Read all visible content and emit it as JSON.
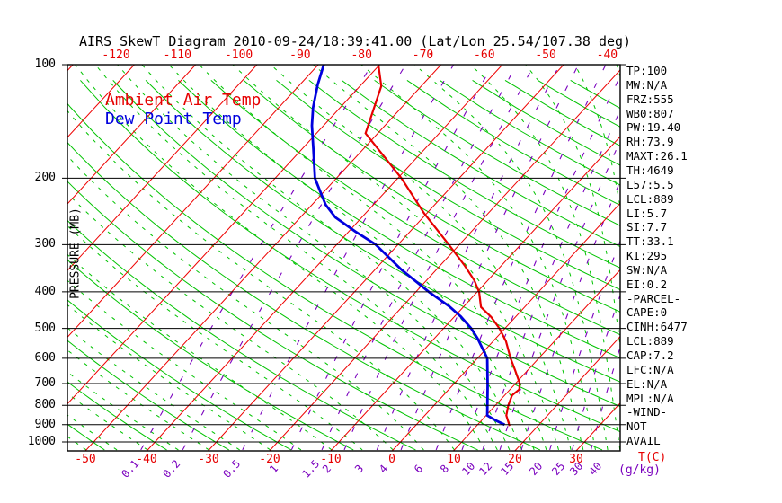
{
  "title": "AIRS SkewT Diagram 2010-09-24/18:39:41.00 (Lat/Lon 25.54/107.38 deg)",
  "legend": {
    "ambient_temp_label": "Ambient Air Temp",
    "dew_point_label": "Dew Point Temp"
  },
  "axes": {
    "pressure_axis_title": "PRESSURE (MB)",
    "pressure_ticks": [
      100,
      200,
      300,
      400,
      500,
      600,
      700,
      800,
      900,
      1000
    ],
    "top_temp_labels": [
      -120,
      -110,
      -100,
      -90,
      -80,
      -70,
      -60,
      -50,
      -40
    ],
    "bottom_temp_labels": [
      -50,
      -40,
      -30,
      -20,
      -10,
      0,
      10,
      20,
      30
    ],
    "temp_unit": "T(C)",
    "mixing_unit": "(g/kg)",
    "mixing_ratio_labels": [
      0.1,
      0.2,
      0.5,
      1,
      1.5,
      2,
      3,
      4,
      6,
      8,
      10,
      12,
      15,
      20,
      25,
      30,
      40
    ]
  },
  "stats": [
    "TP:100",
    "MW:N/A",
    "FRZ:555",
    "WB0:807",
    "PW:19.40",
    "RH:73.9",
    "MAXT:26.1",
    "TH:4649",
    "L57:5.5",
    "LCL:889",
    "LI:5.7",
    "SI:7.7",
    "TT:33.1",
    "KI:295",
    "SW:N/A",
    "EI:0.2",
    "-PARCEL-",
    "CAPE:0",
    "CINH:6477",
    "LCL:889",
    "CAP:7.2",
    "LFC:N/A",
    "EL:N/A",
    "MPL:N/A",
    "-WIND-",
    "NOT",
    "AVAIL"
  ],
  "colors": {
    "isotherm": "#ee0000",
    "dry_adiabat": "#00c300",
    "moist_adiabat": "#00c300",
    "mixing_ratio": "#7a00be",
    "pressure_line": "#000000",
    "temp_curve": "#e60000",
    "dew_curve": "#0000dd",
    "text": "#000000"
  },
  "chart_data": {
    "type": "line",
    "subtype": "skewt-logp",
    "title": "AIRS SkewT Diagram 2010-09-24/18:39:41.00 (Lat/Lon 25.54/107.38 deg)",
    "xlabel": "T(C)",
    "ylabel": "PRESSURE (MB)",
    "pressure_range_mb": [
      100,
      1050
    ],
    "bottom_temp_scale_c": [
      -50,
      30
    ],
    "grid": {
      "isobars_mb": [
        100,
        200,
        300,
        400,
        500,
        600,
        700,
        800,
        900,
        1000
      ],
      "isotherm_step_c": 10,
      "dry_adiabat_step_k": 10,
      "mixing_ratio_g_kg": [
        0.1,
        0.2,
        0.5,
        1,
        1.5,
        2,
        3,
        4,
        6,
        8,
        10,
        12,
        15,
        20,
        25,
        30,
        40
      ]
    },
    "series": [
      {
        "name": "Ambient Air Temp",
        "color": "#e60000",
        "points_p_t": [
          [
            100,
            -60.2
          ],
          [
            114,
            -56.5
          ],
          [
            152,
            -52.0
          ],
          [
            200,
            -39.4
          ],
          [
            248,
            -30.4
          ],
          [
            300,
            -21.7
          ],
          [
            340,
            -16.1
          ],
          [
            373,
            -12.2
          ],
          [
            400,
            -9.7
          ],
          [
            439,
            -7.1
          ],
          [
            467,
            -3.9
          ],
          [
            500,
            -0.9
          ],
          [
            541,
            2.1
          ],
          [
            600,
            5.4
          ],
          [
            645,
            7.9
          ],
          [
            700,
            10.7
          ],
          [
            726,
            11.5
          ],
          [
            752,
            11.2
          ],
          [
            800,
            12.1
          ],
          [
            851,
            13.3
          ],
          [
            907,
            15.4
          ]
        ]
      },
      {
        "name": "Dew Point Temp",
        "color": "#0000dd",
        "points_p_t": [
          [
            100,
            -69.1
          ],
          [
            113,
            -67.1
          ],
          [
            130,
            -64.4
          ],
          [
            145,
            -61.9
          ],
          [
            167,
            -58.2
          ],
          [
            200,
            -53.5
          ],
          [
            219,
            -50.3
          ],
          [
            235,
            -47.8
          ],
          [
            254,
            -44.3
          ],
          [
            277,
            -38.9
          ],
          [
            299,
            -33.8
          ],
          [
            350,
            -25.6
          ],
          [
            400,
            -17.9
          ],
          [
            437,
            -12.4
          ],
          [
            465,
            -9.0
          ],
          [
            500,
            -5.5
          ],
          [
            531,
            -3.0
          ],
          [
            566,
            -0.6
          ],
          [
            600,
            1.6
          ],
          [
            710,
            5.8
          ],
          [
            851,
            10.2
          ],
          [
            878,
            12.4
          ],
          [
            900,
            14.4
          ]
        ]
      }
    ]
  }
}
